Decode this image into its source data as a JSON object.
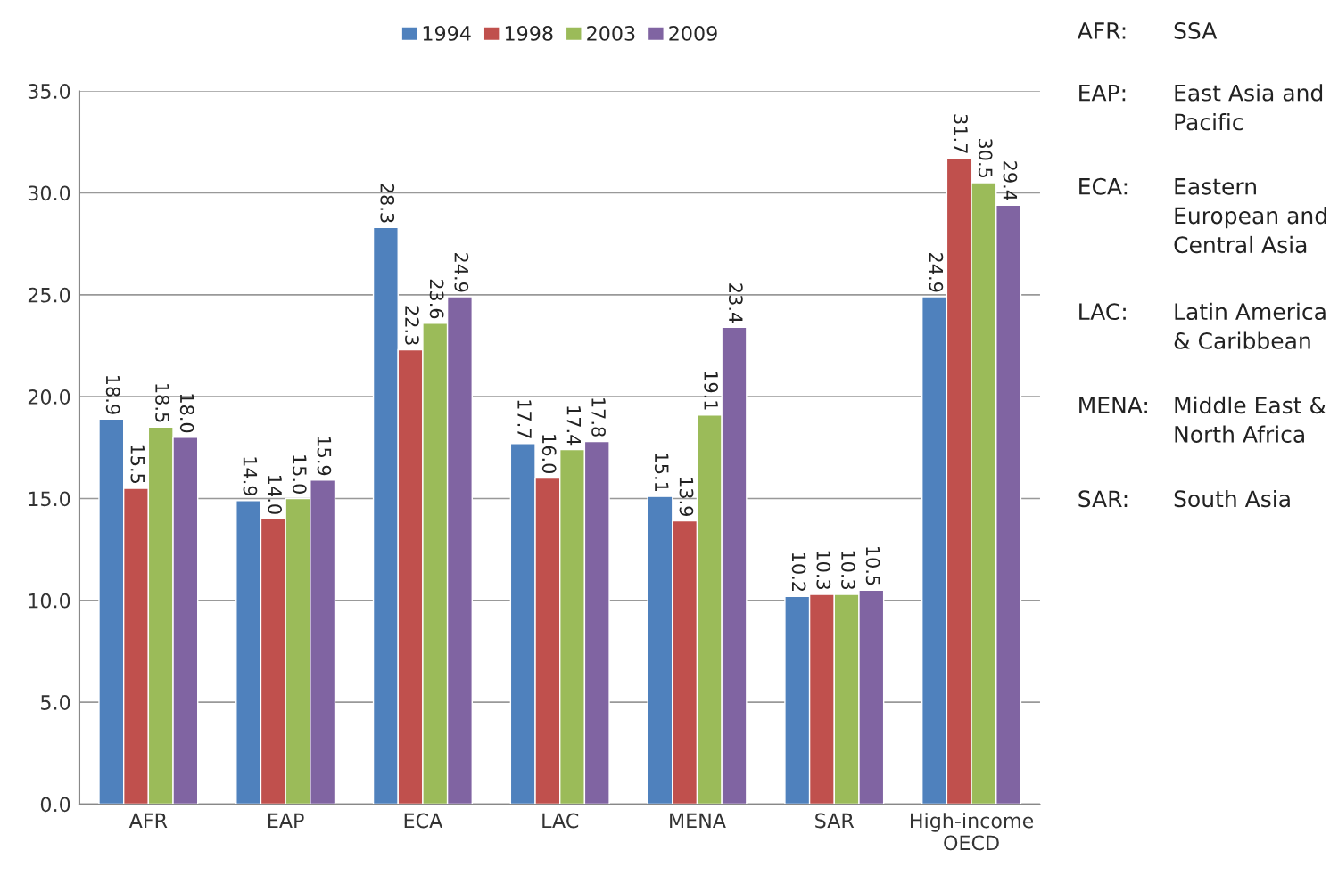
{
  "chart_data": {
    "type": "bar",
    "categories": [
      "AFR",
      "EAP",
      "ECA",
      "LAC",
      "MENA",
      "SAR",
      "High-income\nOECD"
    ],
    "series": [
      {
        "name": "1994",
        "color": "#4f81bd",
        "values": [
          18.9,
          14.9,
          28.3,
          17.7,
          15.1,
          10.2,
          24.9
        ],
        "value_labels": [
          "18.9",
          "14.9",
          "28.3",
          "17.7",
          "15.1",
          "10.2",
          "24.9"
        ]
      },
      {
        "name": "1998",
        "color": "#c0504d",
        "values": [
          15.5,
          14.0,
          22.3,
          16.0,
          13.9,
          10.3,
          31.7
        ],
        "value_labels": [
          "15.5",
          "14.0",
          "22.3",
          "16.0",
          "13.9",
          "10.3",
          "31.7"
        ]
      },
      {
        "name": "2003",
        "color": "#9bbb59",
        "values": [
          18.5,
          15.0,
          23.6,
          17.4,
          19.1,
          10.3,
          30.5
        ],
        "value_labels": [
          "18.5",
          "15.0",
          "23.6",
          "17.4",
          "19.1",
          "10.3",
          "30.5"
        ]
      },
      {
        "name": "2009",
        "color": "#8064a2",
        "values": [
          18.0,
          15.9,
          24.9,
          17.8,
          23.4,
          10.5,
          29.4
        ],
        "value_labels": [
          "18.0",
          "15.9",
          "24.9",
          "17.8",
          "23.4",
          "10.5",
          "29.4"
        ]
      }
    ],
    "ylim": [
      0,
      35
    ],
    "yticks": [
      {
        "value": 0,
        "label": "0.0"
      },
      {
        "value": 5,
        "label": "5.0"
      },
      {
        "value": 10,
        "label": "10.0"
      },
      {
        "value": 15,
        "label": "15.0"
      },
      {
        "value": 20,
        "label": "20.0"
      },
      {
        "value": 25,
        "label": "25.0"
      },
      {
        "value": 30,
        "label": "30.0"
      },
      {
        "value": 35,
        "label": "35.0"
      }
    ],
    "grid": "y",
    "legend": "top",
    "annotations": [
      "AFR:",
      "SSA",
      "EAP:",
      "East Asia and\nPacific",
      "ECA:",
      "Eastern\nEuropean and\nCentral Asia",
      "LAC:",
      "Latin America\n& Caribbean",
      "MENA:",
      "Middle East &\nNorth Africa",
      "SAR:",
      "South Asia"
    ]
  }
}
